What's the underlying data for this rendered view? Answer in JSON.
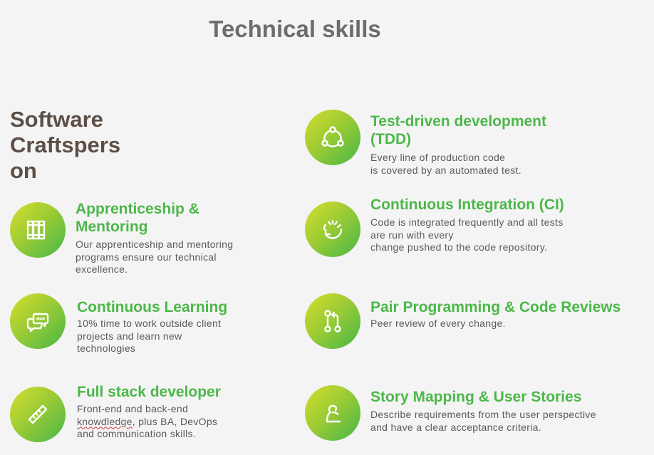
{
  "page": {
    "title": "Technical skills"
  },
  "crafts": {
    "lines": [
      "Software",
      "Craftspers",
      "on"
    ]
  },
  "left_items": [
    {
      "title_lines": [
        "Apprenticeship &",
        "Mentoring"
      ],
      "desc_lines": [
        "Our apprenticeship and mentoring",
        "programs ensure our technical",
        "excellence."
      ],
      "icon": "books-icon"
    },
    {
      "title_lines": [
        "Continuous Learning"
      ],
      "desc_lines": [
        "10% time to work outside client",
        "projects and learn new",
        "technologies"
      ],
      "icon": "chat-bubbles-icon"
    },
    {
      "title_lines": [
        "Full stack developer"
      ],
      "desc_lines": [
        "Front-end and back-end",
        "knowdledge, plus BA, DevOps",
        "and communication skills."
      ],
      "icon": "ruler-icon"
    }
  ],
  "right_items": [
    {
      "title_lines": [
        "Test-driven development",
        "(TDD)"
      ],
      "desc_lines": [
        "Every line of production code",
        "is covered by an automated test."
      ],
      "icon": "cycle-nodes-icon"
    },
    {
      "title_lines": [
        "Continuous Integration (CI)"
      ],
      "desc_lines": [
        "Code is integrated frequently  and all tests",
        "are run with every",
        "change pushed to the code repository."
      ],
      "icon": "refresh-cycle-icon"
    },
    {
      "title_lines": [
        "Pair Programming & Code Reviews"
      ],
      "desc_lines": [
        "Peer review of every change."
      ],
      "icon": "pull-request-icon"
    },
    {
      "title_lines": [
        "Story Mapping & User Stories"
      ],
      "desc_lines": [
        "Describe requirements from  the user perspective",
        "and have  a clear acceptance criteria."
      ],
      "icon": "user-story-icon"
    }
  ],
  "colors": {
    "accent_green": "#4cb749",
    "gradient_start": "#d6dd2f",
    "gradient_end": "#47b649",
    "title_gray": "#6d6d6d",
    "crafts_brown": "#5c4f47"
  }
}
